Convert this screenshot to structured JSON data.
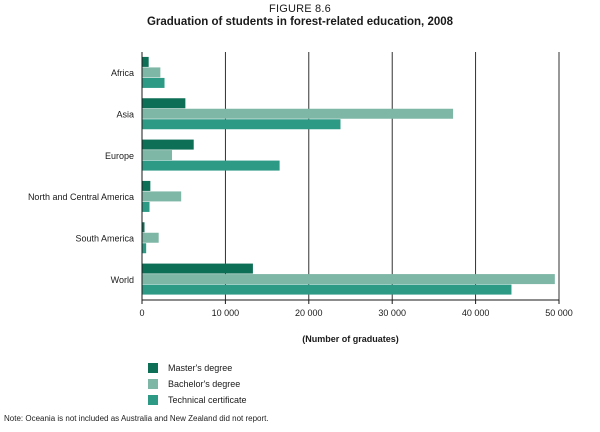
{
  "figure": {
    "label": "FIGURE 8.6",
    "title": "Graduation of students in forest-related education, 2008"
  },
  "chart_data": {
    "type": "bar",
    "orientation": "horizontal",
    "categories": [
      "Africa",
      "Asia",
      "Europe",
      "North and Central America",
      "South America",
      "World"
    ],
    "series": [
      {
        "name": "Master's degree",
        "color": "#0e6f57",
        "values": [
          800,
          5200,
          6200,
          1000,
          300,
          13300
        ]
      },
      {
        "name": "Bachelor's degree",
        "color": "#7fb7a6",
        "values": [
          2200,
          37300,
          3600,
          4700,
          2000,
          49500
        ]
      },
      {
        "name": "Technical certificate",
        "color": "#2d9a86",
        "values": [
          2700,
          23800,
          16500,
          900,
          500,
          44300
        ]
      }
    ],
    "xlabel": "(Number of graduates)",
    "xlim": [
      0,
      50000
    ],
    "xticks": [
      0,
      10000,
      20000,
      30000,
      40000,
      50000
    ],
    "xtick_labels": [
      "0",
      "10 000",
      "20 000",
      "30 000",
      "40 000",
      "50 000"
    ],
    "grid": true,
    "legend_position": "bottom-left"
  },
  "note": "Note: Oceania is not included as Australia and New Zealand did not report."
}
